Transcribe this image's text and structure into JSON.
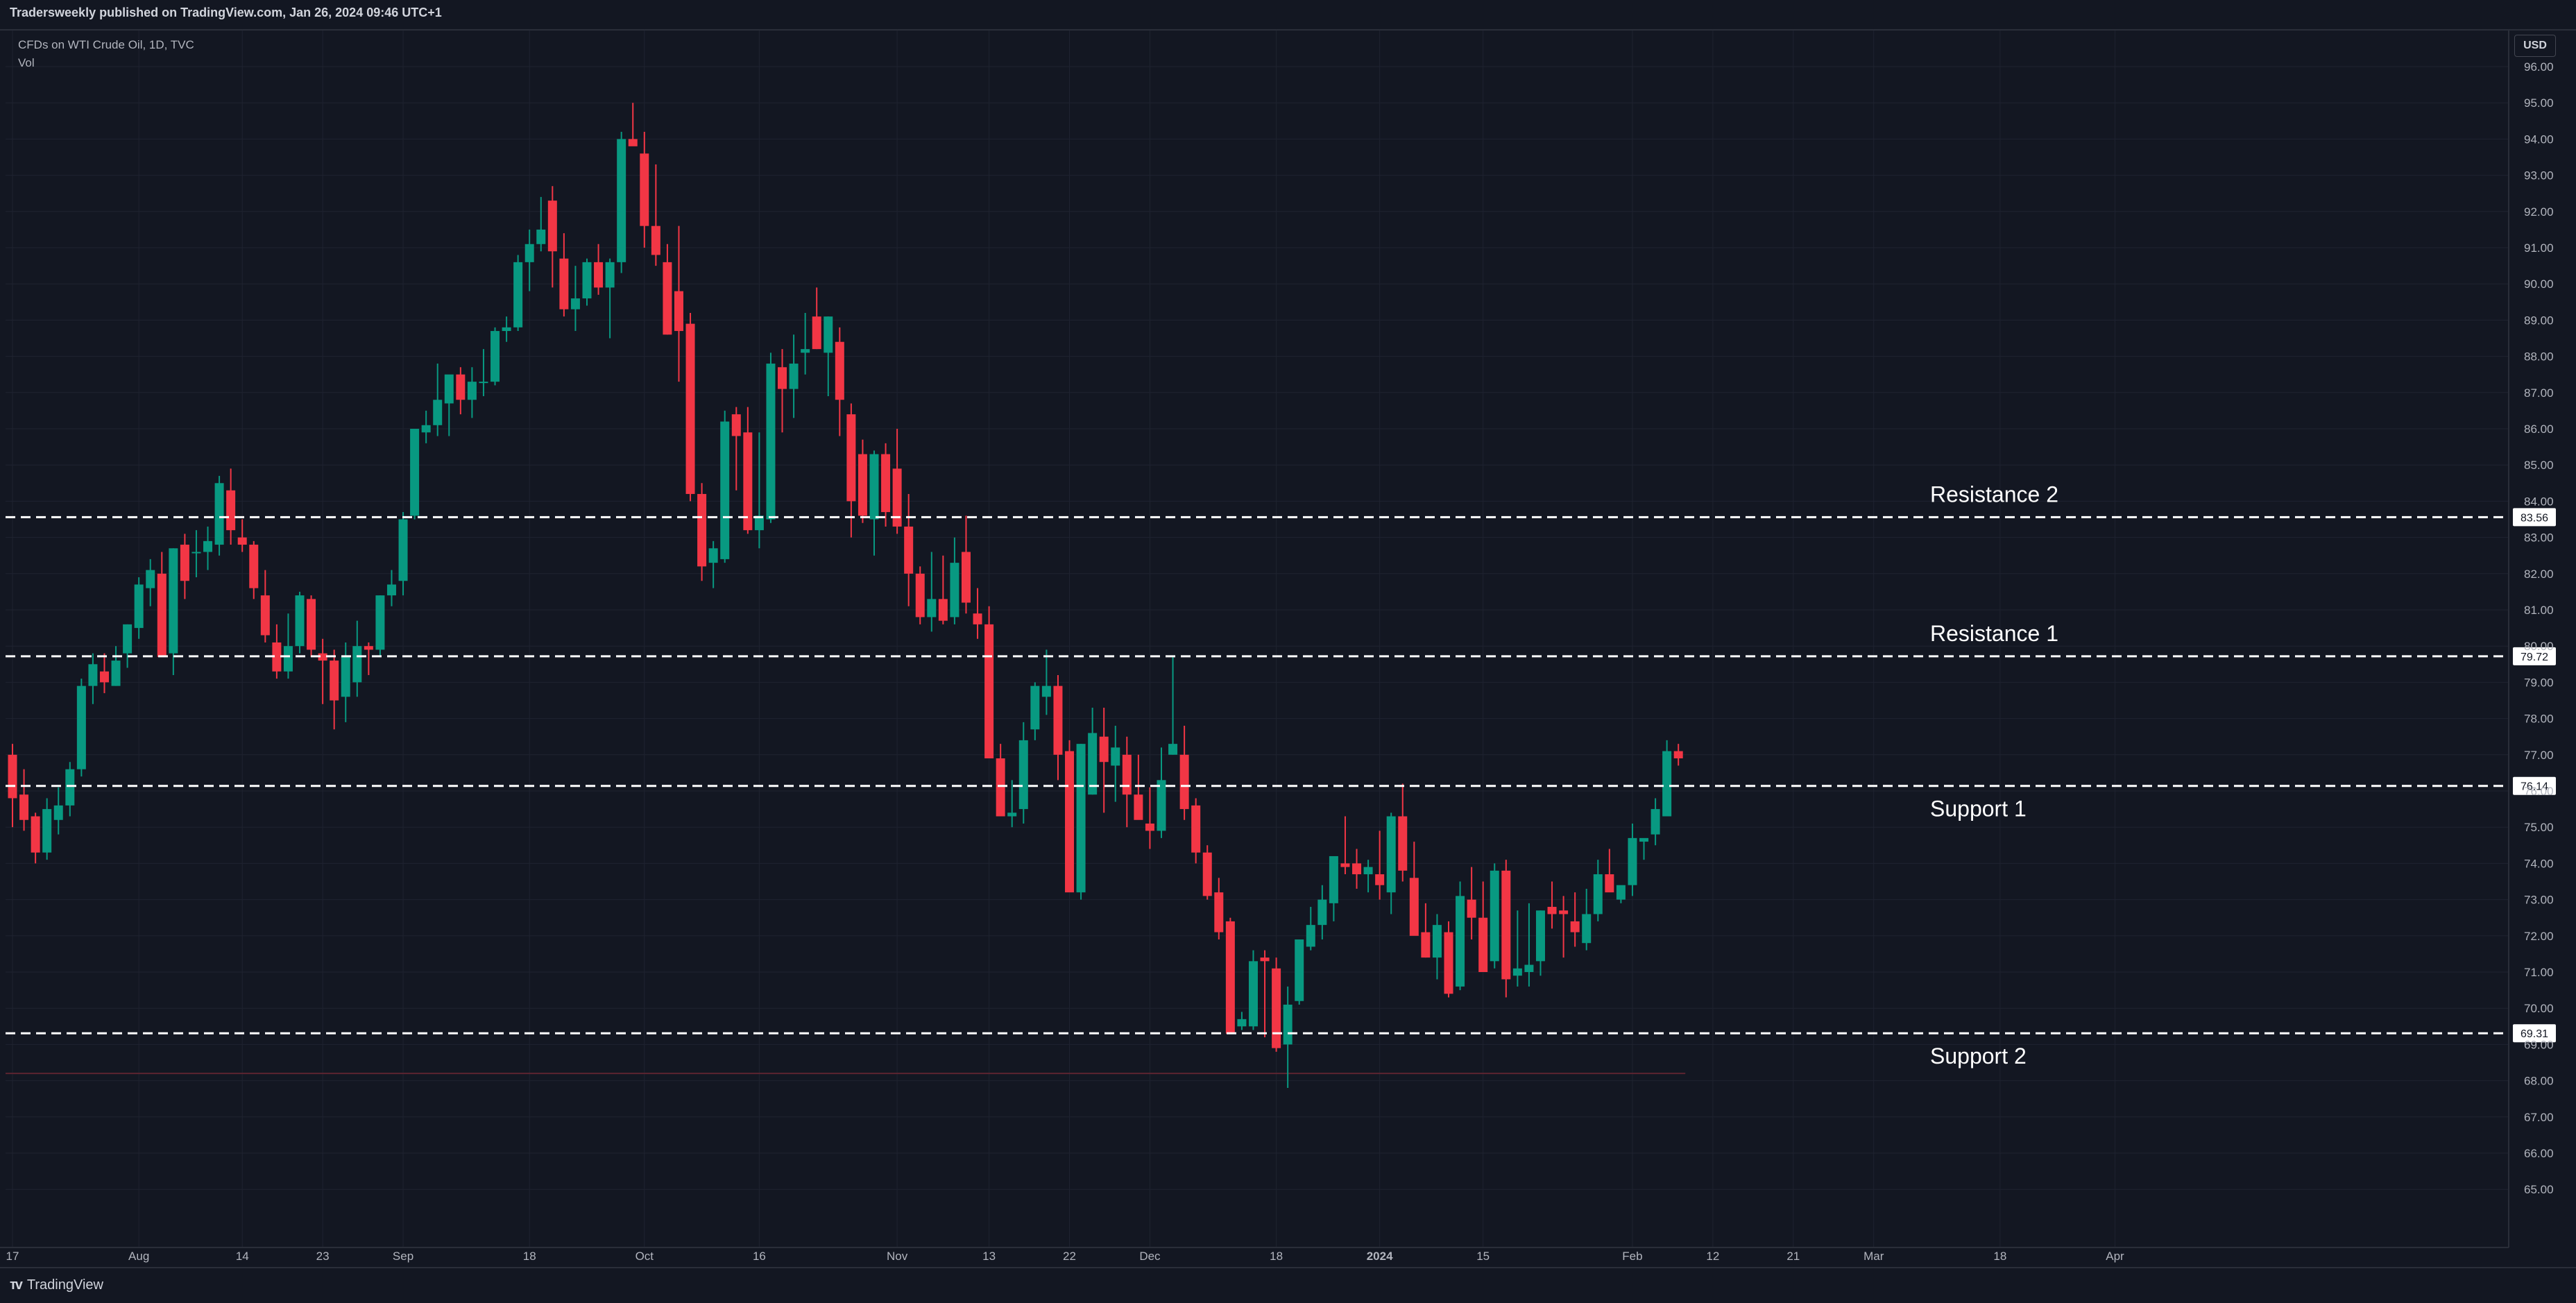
{
  "header": {
    "published": "Tradersweekly published on TradingView.com, Jan 26, 2024 09:46 UTC+1"
  },
  "legend": {
    "symbol": "CFDs on WTI Crude Oil, 1D, TVC",
    "volume": "Vol"
  },
  "price_axis": {
    "currency": "USD"
  },
  "footer": {
    "brand": "TradingView"
  },
  "colors": {
    "background": "#131722",
    "up": "#089981",
    "down": "#f23645",
    "text": "#d1d4dc",
    "grid": "#1f2330"
  },
  "chart_data": {
    "type": "candlestick",
    "ylim": [
      64.0,
      97.0
    ],
    "y_ticks": [
      "96.00",
      "95.00",
      "94.00",
      "93.00",
      "92.00",
      "91.00",
      "90.00",
      "89.00",
      "88.00",
      "87.00",
      "86.00",
      "85.00",
      "84.00",
      "83.00",
      "82.00",
      "81.00",
      "80.00",
      "79.00",
      "78.00",
      "77.00",
      "76.00",
      "75.00",
      "74.00",
      "73.00",
      "72.00",
      "71.00",
      "70.00",
      "69.00",
      "68.00",
      "67.00",
      "66.00",
      "65.00"
    ],
    "x_ticks": [
      {
        "label": "17",
        "slot": 0
      },
      {
        "label": "Aug",
        "slot": 11
      },
      {
        "label": "14",
        "slot": 20
      },
      {
        "label": "23",
        "slot": 27
      },
      {
        "label": "Sep",
        "slot": 34
      },
      {
        "label": "18",
        "slot": 45
      },
      {
        "label": "Oct",
        "slot": 55
      },
      {
        "label": "16",
        "slot": 65
      },
      {
        "label": "Nov",
        "slot": 77
      },
      {
        "label": "13",
        "slot": 85
      },
      {
        "label": "22",
        "slot": 92
      },
      {
        "label": "Dec",
        "slot": 99
      },
      {
        "label": "18",
        "slot": 110
      },
      {
        "label": "2024",
        "slot": 119
      },
      {
        "label": "15",
        "slot": 128
      },
      {
        "label": "Feb",
        "slot": 141
      },
      {
        "label": "12",
        "slot": 148
      },
      {
        "label": "21",
        "slot": 155
      },
      {
        "label": "Mar",
        "slot": 162
      },
      {
        "label": "18",
        "slot": 173
      },
      {
        "label": "Apr",
        "slot": 183
      }
    ],
    "levels": [
      {
        "name": "Resistance 2",
        "value": 83.56,
        "label": "83.56"
      },
      {
        "name": "Resistance 1",
        "value": 79.72,
        "label": "79.72"
      },
      {
        "name": "Support 1",
        "value": 76.14,
        "label": "76.14"
      },
      {
        "name": "Support 2",
        "value": 69.31,
        "label": "69.31"
      }
    ],
    "base_line": 68.2,
    "candles": [
      [
        77.0,
        77.3,
        75.0,
        75.8
      ],
      [
        75.9,
        76.6,
        74.9,
        75.2
      ],
      [
        75.3,
        75.4,
        74.0,
        74.3
      ],
      [
        74.3,
        75.8,
        74.1,
        75.5
      ],
      [
        75.2,
        76.1,
        74.8,
        75.6
      ],
      [
        75.6,
        76.8,
        75.3,
        76.6
      ],
      [
        76.6,
        79.1,
        76.4,
        78.9
      ],
      [
        78.9,
        79.8,
        78.4,
        79.5
      ],
      [
        79.3,
        79.8,
        78.7,
        79.0
      ],
      [
        78.9,
        80.0,
        78.9,
        79.6
      ],
      [
        79.8,
        80.6,
        79.4,
        80.6
      ],
      [
        80.5,
        81.9,
        80.2,
        81.7
      ],
      [
        81.6,
        82.4,
        81.1,
        82.1
      ],
      [
        82.0,
        82.6,
        79.7,
        79.7
      ],
      [
        79.8,
        82.7,
        79.2,
        82.7
      ],
      [
        82.8,
        83.1,
        81.3,
        81.8
      ],
      [
        82.6,
        83.2,
        81.9,
        82.6
      ],
      [
        82.6,
        83.3,
        82.1,
        82.9
      ],
      [
        82.8,
        84.7,
        82.5,
        84.5
      ],
      [
        84.3,
        84.9,
        82.8,
        83.2
      ],
      [
        83.0,
        83.5,
        82.6,
        82.8
      ],
      [
        82.8,
        82.9,
        81.3,
        81.6
      ],
      [
        81.4,
        82.1,
        80.1,
        80.3
      ],
      [
        80.1,
        80.6,
        79.1,
        79.3
      ],
      [
        79.3,
        80.9,
        79.1,
        80.0
      ],
      [
        80.0,
        81.5,
        79.8,
        81.4
      ],
      [
        81.3,
        81.4,
        79.7,
        79.9
      ],
      [
        79.8,
        80.2,
        78.4,
        79.6
      ],
      [
        79.6,
        79.9,
        77.7,
        78.5
      ],
      [
        78.6,
        80.1,
        77.9,
        79.7
      ],
      [
        79.0,
        80.7,
        78.6,
        80.0
      ],
      [
        80.0,
        80.1,
        79.2,
        79.9
      ],
      [
        79.9,
        81.4,
        79.7,
        81.4
      ],
      [
        81.4,
        82.1,
        81.1,
        81.7
      ],
      [
        81.8,
        83.7,
        81.4,
        83.5
      ],
      [
        83.6,
        86.0,
        83.5,
        86.0
      ],
      [
        85.9,
        86.5,
        85.6,
        86.1
      ],
      [
        86.1,
        87.8,
        85.8,
        86.8
      ],
      [
        86.7,
        87.4,
        85.8,
        87.5
      ],
      [
        87.5,
        87.7,
        86.4,
        86.8
      ],
      [
        86.8,
        87.7,
        86.3,
        87.3
      ],
      [
        87.3,
        88.2,
        86.9,
        87.3
      ],
      [
        87.3,
        88.8,
        87.2,
        88.7
      ],
      [
        88.7,
        89.1,
        88.4,
        88.8
      ],
      [
        88.8,
        90.8,
        88.7,
        90.6
      ],
      [
        90.6,
        91.5,
        89.8,
        91.1
      ],
      [
        91.1,
        92.4,
        90.9,
        91.5
      ],
      [
        92.3,
        92.7,
        89.9,
        90.9
      ],
      [
        90.7,
        91.4,
        89.1,
        89.3
      ],
      [
        89.3,
        90.5,
        88.7,
        89.6
      ],
      [
        89.6,
        90.7,
        89.4,
        90.6
      ],
      [
        90.6,
        91.1,
        89.7,
        89.9
      ],
      [
        89.9,
        90.7,
        88.5,
        90.6
      ],
      [
        90.6,
        94.2,
        90.3,
        94.0
      ],
      [
        94.0,
        95.0,
        93.9,
        93.8
      ],
      [
        93.6,
        94.2,
        91.0,
        91.6
      ],
      [
        91.6,
        93.3,
        90.5,
        90.8
      ],
      [
        90.6,
        91.1,
        88.6,
        88.6
      ],
      [
        89.8,
        91.6,
        87.3,
        88.7
      ],
      [
        88.9,
        89.2,
        84.0,
        84.2
      ],
      [
        84.2,
        84.5,
        81.8,
        82.2
      ],
      [
        82.3,
        82.9,
        81.6,
        82.7
      ],
      [
        82.4,
        86.5,
        82.3,
        86.2
      ],
      [
        86.4,
        86.6,
        84.3,
        85.8
      ],
      [
        85.9,
        86.6,
        83.1,
        83.2
      ],
      [
        83.2,
        85.9,
        82.7,
        83.6
      ],
      [
        83.5,
        88.1,
        83.4,
        87.8
      ],
      [
        87.7,
        88.2,
        85.9,
        87.1
      ],
      [
        87.1,
        88.6,
        86.3,
        87.8
      ],
      [
        88.1,
        89.2,
        87.5,
        88.2
      ],
      [
        89.1,
        89.9,
        88.2,
        88.2
      ],
      [
        88.1,
        89.1,
        86.9,
        89.1
      ],
      [
        88.4,
        88.8,
        85.8,
        86.8
      ],
      [
        86.4,
        86.7,
        83.0,
        84.0
      ],
      [
        85.3,
        85.7,
        83.4,
        83.6
      ],
      [
        83.5,
        85.4,
        82.5,
        85.3
      ],
      [
        85.3,
        85.6,
        83.3,
        83.7
      ],
      [
        84.9,
        86.0,
        83.1,
        83.3
      ],
      [
        83.3,
        84.2,
        81.1,
        82.0
      ],
      [
        82.0,
        82.2,
        80.6,
        80.8
      ],
      [
        80.8,
        82.6,
        80.4,
        81.3
      ],
      [
        81.3,
        82.5,
        80.6,
        80.7
      ],
      [
        80.8,
        83.0,
        80.6,
        82.3
      ],
      [
        82.6,
        83.6,
        80.9,
        81.2
      ],
      [
        80.9,
        81.6,
        80.2,
        80.6
      ],
      [
        80.6,
        81.1,
        76.9,
        76.9
      ],
      [
        76.9,
        77.3,
        75.4,
        75.3
      ],
      [
        75.3,
        76.3,
        75.0,
        75.4
      ],
      [
        75.5,
        77.9,
        75.1,
        77.4
      ],
      [
        77.7,
        79.0,
        77.4,
        78.9
      ],
      [
        78.6,
        79.9,
        78.1,
        78.9
      ],
      [
        78.9,
        79.2,
        76.3,
        77.0
      ],
      [
        77.1,
        77.4,
        73.4,
        73.2
      ],
      [
        73.2,
        77.3,
        73.0,
        77.3
      ],
      [
        75.9,
        78.3,
        75.9,
        77.6
      ],
      [
        77.5,
        78.3,
        75.4,
        76.8
      ],
      [
        76.7,
        77.8,
        75.7,
        77.2
      ],
      [
        77.0,
        77.5,
        75.0,
        75.9
      ],
      [
        75.9,
        77.0,
        75.3,
        75.2
      ],
      [
        75.1,
        76.1,
        74.4,
        74.9
      ],
      [
        74.9,
        77.2,
        74.7,
        76.3
      ],
      [
        77.0,
        79.7,
        77.0,
        77.3
      ],
      [
        77.0,
        77.8,
        75.2,
        75.5
      ],
      [
        75.6,
        75.8,
        74.0,
        74.3
      ],
      [
        74.3,
        74.5,
        73.0,
        73.1
      ],
      [
        73.2,
        73.6,
        71.9,
        72.1
      ],
      [
        72.4,
        72.5,
        69.4,
        69.3
      ],
      [
        69.5,
        69.9,
        69.4,
        69.7
      ],
      [
        69.5,
        71.6,
        69.4,
        71.3
      ],
      [
        71.4,
        71.6,
        69.2,
        71.3
      ],
      [
        71.1,
        71.4,
        68.8,
        68.9
      ],
      [
        69.0,
        70.6,
        67.8,
        70.1
      ],
      [
        70.2,
        71.9,
        70.1,
        71.9
      ],
      [
        71.7,
        72.8,
        71.6,
        72.3
      ],
      [
        72.3,
        73.4,
        71.9,
        73.0
      ],
      [
        72.9,
        74.2,
        72.4,
        74.2
      ],
      [
        74.0,
        75.3,
        73.7,
        73.9
      ],
      [
        74.0,
        74.4,
        73.3,
        73.7
      ],
      [
        73.7,
        74.1,
        73.2,
        73.9
      ],
      [
        73.7,
        74.9,
        73.0,
        73.4
      ],
      [
        73.2,
        75.4,
        72.6,
        75.3
      ],
      [
        75.3,
        76.2,
        73.5,
        73.8
      ],
      [
        73.6,
        74.6,
        72.2,
        72.0
      ],
      [
        72.1,
        72.9,
        71.4,
        71.4
      ],
      [
        71.4,
        72.6,
        70.8,
        72.3
      ],
      [
        72.1,
        72.4,
        70.3,
        70.4
      ],
      [
        70.6,
        73.5,
        70.5,
        73.1
      ],
      [
        73.0,
        73.9,
        71.9,
        72.5
      ],
      [
        72.5,
        73.5,
        71.2,
        71.0
      ],
      [
        71.3,
        74.0,
        71.1,
        73.8
      ],
      [
        73.8,
        74.1,
        70.3,
        70.8
      ],
      [
        70.9,
        72.7,
        70.6,
        71.1
      ],
      [
        71.0,
        72.9,
        70.6,
        71.2
      ],
      [
        71.3,
        72.7,
        70.9,
        72.7
      ],
      [
        72.8,
        73.5,
        72.2,
        72.6
      ],
      [
        72.7,
        73.1,
        71.4,
        72.6
      ],
      [
        72.4,
        73.2,
        71.7,
        72.1
      ],
      [
        71.8,
        73.3,
        71.6,
        72.6
      ],
      [
        72.6,
        74.1,
        72.4,
        73.7
      ],
      [
        73.7,
        74.4,
        73.3,
        73.2
      ],
      [
        73.0,
        73.3,
        72.9,
        73.4
      ],
      [
        73.4,
        75.1,
        73.1,
        74.7
      ],
      [
        74.6,
        74.6,
        74.1,
        74.7
      ],
      [
        74.8,
        75.8,
        74.5,
        75.5
      ],
      [
        75.3,
        77.4,
        75.3,
        77.1
      ],
      [
        77.1,
        77.3,
        76.7,
        76.9
      ]
    ]
  }
}
